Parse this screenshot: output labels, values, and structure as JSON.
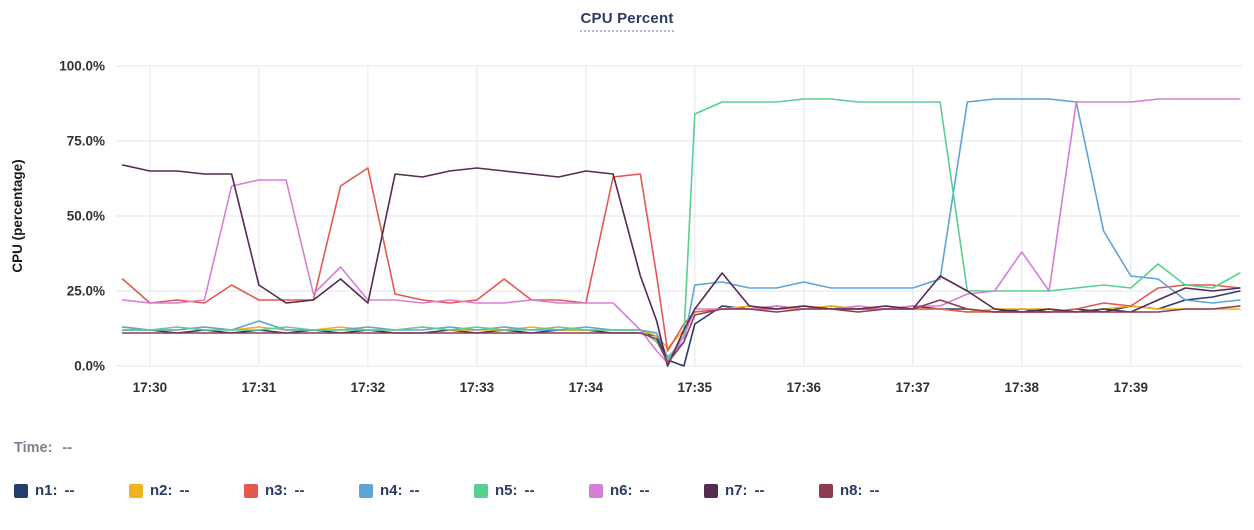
{
  "title": "CPU Percent",
  "time_row": {
    "label": "Time:",
    "value": "--"
  },
  "legend": [
    {
      "name": "n1",
      "value": "--",
      "color": "#263c6b"
    },
    {
      "name": "n2",
      "value": "--",
      "color": "#edb41e"
    },
    {
      "name": "n3",
      "value": "--",
      "color": "#e4584e"
    },
    {
      "name": "n4",
      "value": "--",
      "color": "#5fa4d8"
    },
    {
      "name": "n5",
      "value": "--",
      "color": "#58d091"
    },
    {
      "name": "n6",
      "value": "--",
      "color": "#d480d4"
    },
    {
      "name": "n7",
      "value": "--",
      "color": "#572a51"
    },
    {
      "name": "n8",
      "value": "--",
      "color": "#8e3b52"
    }
  ],
  "chart_data": {
    "type": "line",
    "title": "CPU Percent",
    "xlabel": "",
    "ylabel": "CPU (percentage)",
    "ylim": [
      0,
      100
    ],
    "x_range": [
      -0.32,
      10.02
    ],
    "grid": true,
    "legend_position": "bottom",
    "y_ticks": [
      {
        "value": 0,
        "label": "0.0%"
      },
      {
        "value": 25,
        "label": "25.0%"
      },
      {
        "value": 50,
        "label": "50.0%"
      },
      {
        "value": 75,
        "label": "75.0%"
      },
      {
        "value": 100,
        "label": "100.0%"
      }
    ],
    "x_ticks": [
      {
        "value": 0,
        "label": "17:30"
      },
      {
        "value": 1,
        "label": "17:31"
      },
      {
        "value": 2,
        "label": "17:32"
      },
      {
        "value": 3,
        "label": "17:33"
      },
      {
        "value": 4,
        "label": "17:34"
      },
      {
        "value": 5,
        "label": "17:35"
      },
      {
        "value": 6,
        "label": "17:36"
      },
      {
        "value": 7,
        "label": "17:37"
      },
      {
        "value": 8,
        "label": "17:38"
      },
      {
        "value": 9,
        "label": "17:39"
      }
    ],
    "x": [
      -0.25,
      0,
      0.25,
      0.5,
      0.75,
      1,
      1.25,
      1.5,
      1.75,
      2,
      2.25,
      2.5,
      2.75,
      3,
      3.25,
      3.5,
      3.75,
      4,
      4.25,
      4.5,
      4.65,
      4.75,
      4.9,
      5,
      5.25,
      5.5,
      5.75,
      6,
      6.25,
      6.5,
      6.75,
      7,
      7.25,
      7.5,
      7.75,
      8,
      8.25,
      8.5,
      8.75,
      9,
      9.25,
      9.5,
      9.75,
      10
    ],
    "series": [
      {
        "name": "n1",
        "color": "#263c6b",
        "values": [
          12,
          12,
          11,
          12,
          11,
          12,
          11,
          12,
          11,
          12,
          11,
          11,
          12,
          11,
          12,
          11,
          12,
          12,
          11,
          11,
          10,
          2,
          0,
          14,
          20,
          19,
          20,
          19,
          20,
          19,
          19,
          20,
          19,
          19,
          18,
          19,
          18,
          19,
          18,
          20,
          19,
          22,
          23,
          25
        ]
      },
      {
        "name": "n2",
        "color": "#edb41e",
        "values": [
          13,
          12,
          12,
          13,
          12,
          13,
          12,
          12,
          13,
          12,
          12,
          13,
          12,
          12,
          12,
          13,
          12,
          12,
          12,
          12,
          10,
          6,
          12,
          18,
          19,
          20,
          19,
          19,
          20,
          19,
          19,
          19,
          19,
          18,
          19,
          19,
          19,
          18,
          19,
          20,
          19,
          19,
          19,
          19
        ]
      },
      {
        "name": "n3",
        "color": "#e4584e",
        "values": [
          29,
          21,
          22,
          21,
          27,
          22,
          22,
          22,
          60,
          66,
          24,
          22,
          21,
          22,
          29,
          22,
          22,
          21,
          63,
          64,
          30,
          5,
          14,
          18,
          19,
          19,
          19,
          20,
          19,
          19,
          19,
          19,
          19,
          18,
          18,
          18,
          18,
          19,
          21,
          20,
          26,
          27,
          27,
          26
        ]
      },
      {
        "name": "n4",
        "color": "#5fa4d8",
        "values": [
          13,
          12,
          12,
          13,
          12,
          15,
          12,
          12,
          12,
          13,
          12,
          12,
          13,
          12,
          13,
          12,
          12,
          13,
          12,
          12,
          11,
          3,
          8,
          27,
          28,
          26,
          26,
          28,
          26,
          26,
          26,
          26,
          29,
          88,
          89,
          89,
          89,
          88,
          45,
          30,
          29,
          22,
          21,
          22
        ]
      },
      {
        "name": "n5",
        "color": "#58d091",
        "values": [
          12,
          12,
          13,
          12,
          12,
          12,
          13,
          12,
          12,
          12,
          12,
          13,
          12,
          13,
          12,
          12,
          13,
          12,
          12,
          12,
          8,
          2,
          10,
          84,
          88,
          88,
          88,
          89,
          89,
          88,
          88,
          88,
          88,
          25,
          25,
          25,
          25,
          26,
          27,
          26,
          34,
          27,
          26,
          31
        ]
      },
      {
        "name": "n6",
        "color": "#d480d4",
        "values": [
          22,
          21,
          21,
          22,
          60,
          62,
          62,
          24,
          33,
          22,
          22,
          21,
          22,
          21,
          21,
          22,
          21,
          21,
          21,
          12,
          5,
          1,
          10,
          19,
          19,
          19,
          20,
          19,
          19,
          20,
          19,
          20,
          20,
          24,
          25,
          38,
          25,
          88,
          88,
          88,
          89,
          89,
          89,
          89
        ]
      },
      {
        "name": "n7",
        "color": "#572a51",
        "values": [
          67,
          65,
          65,
          64,
          64,
          27,
          21,
          22,
          29,
          21,
          64,
          63,
          65,
          66,
          65,
          64,
          63,
          65,
          64,
          30,
          15,
          0,
          12,
          19,
          31,
          20,
          19,
          20,
          19,
          19,
          20,
          19,
          30,
          25,
          19,
          18,
          19,
          18,
          19,
          18,
          22,
          26,
          25,
          26
        ]
      },
      {
        "name": "n8",
        "color": "#8e3b52",
        "values": [
          11,
          11,
          11,
          11,
          11,
          11,
          11,
          11,
          11,
          11,
          11,
          11,
          11,
          11,
          11,
          11,
          11,
          11,
          11,
          11,
          9,
          1,
          8,
          17,
          19,
          19,
          18,
          19,
          19,
          18,
          19,
          19,
          22,
          19,
          18,
          18,
          18,
          18,
          18,
          18,
          18,
          19,
          19,
          20
        ]
      }
    ]
  }
}
